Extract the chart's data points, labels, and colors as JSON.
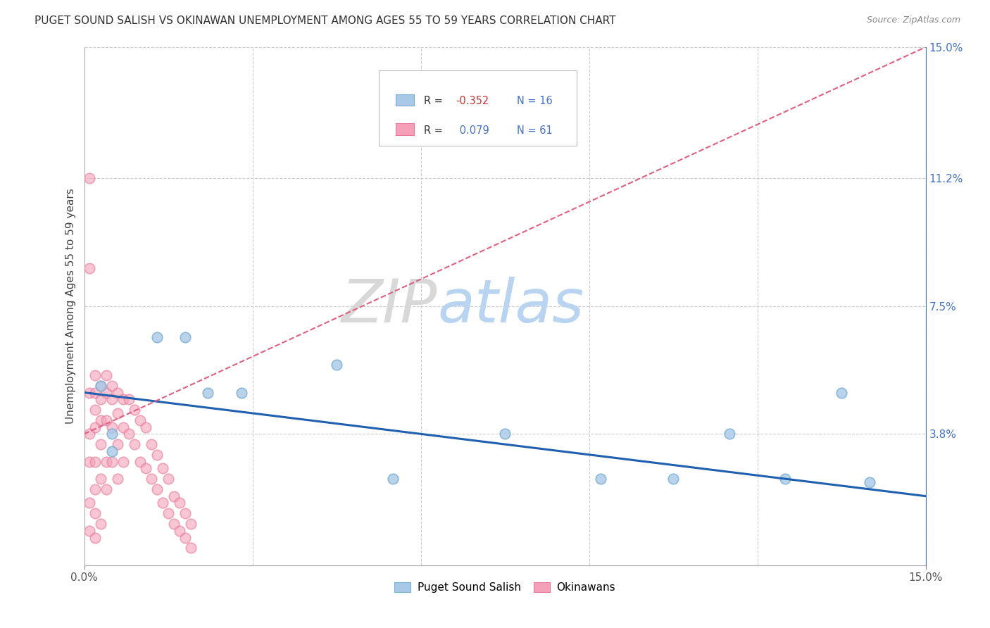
{
  "title": "PUGET SOUND SALISH VS OKINAWAN UNEMPLOYMENT AMONG AGES 55 TO 59 YEARS CORRELATION CHART",
  "source": "Source: ZipAtlas.com",
  "ylabel": "Unemployment Among Ages 55 to 59 years",
  "xlim": [
    0,
    0.15
  ],
  "ylim": [
    0,
    0.15
  ],
  "right_yticks": [
    0.038,
    0.075,
    0.112,
    0.15
  ],
  "right_yticklabels": [
    "3.8%",
    "7.5%",
    "11.2%",
    "15.0%"
  ],
  "blue_color": "#a8c8e8",
  "pink_color": "#f4a0b8",
  "blue_edge_color": "#7aaed0",
  "pink_edge_color": "#e87898",
  "blue_line_color": "#2060b0",
  "pink_line_color": "#e06080",
  "grid_color": "#cccccc",
  "blue_points_x": [
    0.003,
    0.005,
    0.013,
    0.018,
    0.022,
    0.028,
    0.045,
    0.055,
    0.075,
    0.092,
    0.105,
    0.115,
    0.125,
    0.135,
    0.14,
    0.005
  ],
  "blue_points_y": [
    0.052,
    0.038,
    0.066,
    0.066,
    0.05,
    0.05,
    0.058,
    0.025,
    0.038,
    0.025,
    0.025,
    0.038,
    0.025,
    0.05,
    0.024,
    0.033
  ],
  "pink_points_x": [
    0.001,
    0.001,
    0.001,
    0.001,
    0.001,
    0.002,
    0.002,
    0.002,
    0.002,
    0.002,
    0.002,
    0.003,
    0.003,
    0.003,
    0.003,
    0.003,
    0.004,
    0.004,
    0.004,
    0.004,
    0.004,
    0.005,
    0.005,
    0.005,
    0.005,
    0.006,
    0.006,
    0.006,
    0.006,
    0.007,
    0.007,
    0.007,
    0.008,
    0.008,
    0.009,
    0.009,
    0.01,
    0.01,
    0.011,
    0.011,
    0.012,
    0.012,
    0.013,
    0.013,
    0.014,
    0.014,
    0.015,
    0.015,
    0.016,
    0.016,
    0.017,
    0.017,
    0.018,
    0.018,
    0.019,
    0.019,
    0.001,
    0.001,
    0.002,
    0.002,
    0.003
  ],
  "pink_points_y": [
    0.112,
    0.086,
    0.05,
    0.038,
    0.03,
    0.055,
    0.05,
    0.045,
    0.04,
    0.03,
    0.022,
    0.052,
    0.048,
    0.042,
    0.035,
    0.025,
    0.055,
    0.05,
    0.042,
    0.03,
    0.022,
    0.052,
    0.048,
    0.04,
    0.03,
    0.05,
    0.044,
    0.035,
    0.025,
    0.048,
    0.04,
    0.03,
    0.048,
    0.038,
    0.045,
    0.035,
    0.042,
    0.03,
    0.04,
    0.028,
    0.035,
    0.025,
    0.032,
    0.022,
    0.028,
    0.018,
    0.025,
    0.015,
    0.02,
    0.012,
    0.018,
    0.01,
    0.015,
    0.008,
    0.012,
    0.005,
    0.018,
    0.01,
    0.015,
    0.008,
    0.012
  ],
  "blue_trend_x0": 0.0,
  "blue_trend_y0": 0.05,
  "blue_trend_x1": 0.15,
  "blue_trend_y1": 0.02,
  "pink_trend_x0": 0.0,
  "pink_trend_y0": 0.038,
  "pink_trend_x1": 0.15,
  "pink_trend_y1": 0.15,
  "figsize": [
    14.06,
    8.92
  ],
  "dpi": 100
}
